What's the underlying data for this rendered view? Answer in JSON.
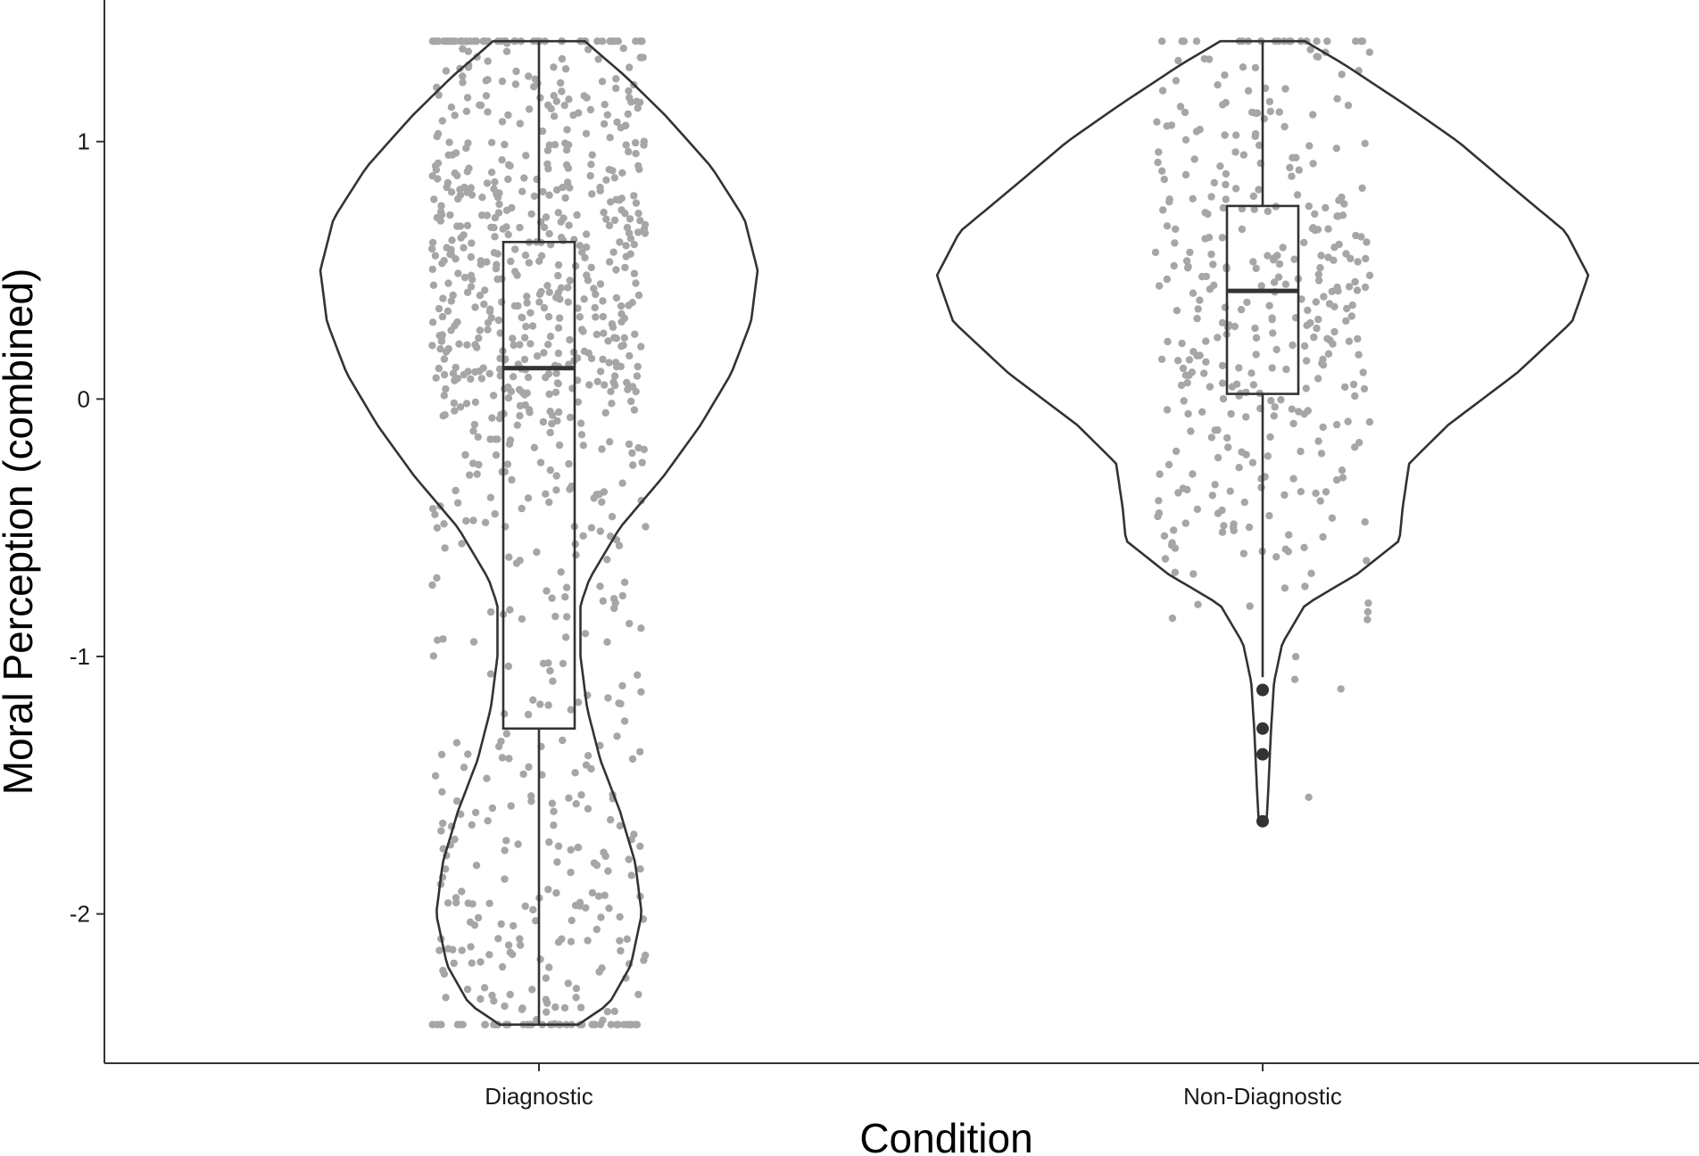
{
  "chart_data": {
    "type": "violin",
    "xlabel": "Condition",
    "ylabel": "Moral Perception (combined)",
    "categories": [
      "Diagnostic",
      "Non-Diagnostic"
    ],
    "ylim": [
      -2.58,
      1.55
    ],
    "yticks": [
      -2,
      -1,
      0,
      1
    ],
    "ytick_labels": [
      "-2",
      "-1",
      "0",
      "1"
    ],
    "grid": false,
    "legend": "none",
    "colors": {
      "violin": "#333333",
      "box": "#333333",
      "points": "#a6a6a6",
      "outliers": "#333333"
    },
    "groups": [
      {
        "name": "Diagnostic",
        "box": {
          "q1": -1.28,
          "median": 0.12,
          "q3": 0.61,
          "whisker_low": -2.43,
          "whisker_high": 1.39
        },
        "outliers": [],
        "density": [
          [
            -2.43,
            0.18
          ],
          [
            -2.35,
            0.32
          ],
          [
            -2.2,
            0.42
          ],
          [
            -2.0,
            0.47
          ],
          [
            -1.8,
            0.44
          ],
          [
            -1.6,
            0.37
          ],
          [
            -1.4,
            0.28
          ],
          [
            -1.2,
            0.22
          ],
          [
            -1.0,
            0.19
          ],
          [
            -0.8,
            0.19
          ],
          [
            -0.7,
            0.23
          ],
          [
            -0.5,
            0.37
          ],
          [
            -0.3,
            0.57
          ],
          [
            -0.1,
            0.74
          ],
          [
            0.1,
            0.88
          ],
          [
            0.3,
            0.97
          ],
          [
            0.5,
            1.0
          ],
          [
            0.7,
            0.94
          ],
          [
            0.9,
            0.79
          ],
          [
            1.1,
            0.58
          ],
          [
            1.25,
            0.4
          ],
          [
            1.39,
            0.21
          ]
        ],
        "points_n": 900
      },
      {
        "name": "Non-Diagnostic",
        "box": {
          "q1": 0.02,
          "median": 0.42,
          "q3": 0.75,
          "whisker_low": -1.08,
          "whisker_high": 1.39
        },
        "outliers": [
          -1.13,
          -1.28,
          -1.38,
          -1.64
        ],
        "density": [
          [
            -1.64,
            0.012
          ],
          [
            -1.5,
            0.018
          ],
          [
            -1.3,
            0.025
          ],
          [
            -1.1,
            0.035
          ],
          [
            -0.95,
            0.06
          ],
          [
            -0.8,
            0.13
          ],
          [
            -0.68,
            0.29
          ],
          [
            -0.55,
            0.42
          ],
          [
            -0.42,
            0.43
          ],
          [
            -0.25,
            0.45
          ],
          [
            -0.1,
            0.57
          ],
          [
            0.1,
            0.78
          ],
          [
            0.3,
            0.95
          ],
          [
            0.48,
            1.0
          ],
          [
            0.65,
            0.93
          ],
          [
            0.85,
            0.74
          ],
          [
            1.0,
            0.6
          ],
          [
            1.15,
            0.43
          ],
          [
            1.3,
            0.25
          ],
          [
            1.39,
            0.13
          ]
        ],
        "points_n": 380
      }
    ]
  }
}
